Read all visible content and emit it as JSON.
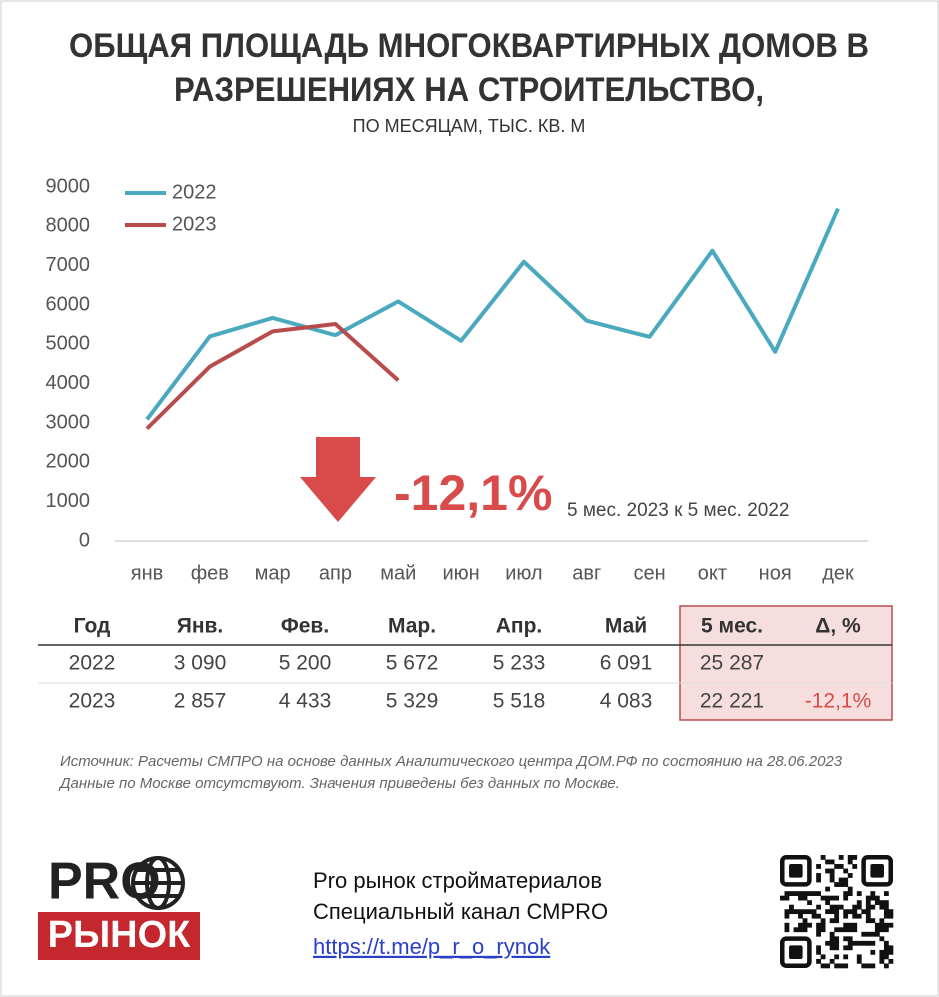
{
  "chart_data": {
    "type": "line",
    "title": [
      "ОБЩАЯ ПЛОЩАДЬ МНОГОКВАРТИРНЫХ ДОМОВ В",
      "РАЗРЕШЕНИЯХ НА СТРОИТЕЛЬСТВО,"
    ],
    "subtitle": "ПО МЕСЯЦАМ, ТЫС. КВ. М",
    "categories": [
      "янв",
      "фев",
      "мар",
      "апр",
      "май",
      "июн",
      "июл",
      "авг",
      "сен",
      "окт",
      "ноя",
      "дек"
    ],
    "series": [
      {
        "name": "2022",
        "color": "#4aa8bf",
        "values": [
          3090,
          5200,
          5672,
          5233,
          6091,
          5090,
          7100,
          5600,
          5190,
          7380,
          4810,
          8450
        ]
      },
      {
        "name": "2023",
        "color": "#b84c4c",
        "values": [
          2857,
          4433,
          5329,
          5518,
          4083,
          null,
          null,
          null,
          null,
          null,
          null,
          null
        ]
      }
    ],
    "ylim": [
      0,
      9000
    ],
    "yticks": [
      0,
      1000,
      2000,
      3000,
      4000,
      5000,
      6000,
      7000,
      8000,
      9000
    ],
    "legend": "upper-left",
    "annotation": {
      "value": "-12,1%",
      "note": "5 мес. 2023 к 5 мес. 2022"
    }
  },
  "table": {
    "header": [
      "Год",
      "Янв.",
      "Фев.",
      "Мар.",
      "Апр.",
      "Май",
      "5 мес.",
      "Δ, %"
    ],
    "rows": [
      [
        "2022",
        "3 090",
        "5 200",
        "5 672",
        "5 233",
        "6 091",
        "25 287"
      ],
      [
        "2023",
        "2 857",
        "4 433",
        "5 329",
        "5 518",
        "4 083",
        "22 221",
        "-12,1%"
      ]
    ]
  },
  "source": [
    "Источник: Расчеты СМПРО на основе данных Аналитического центра ДОМ.РФ по состоянию на 28.06.2023",
    "Данные по Москве отсутствуют. Значения приведены без данных по Москве."
  ],
  "footer": {
    "logo_top": "PRO",
    "logo_bottom": "РЫНОК",
    "channel_name": "Pro рынок стройматериалов",
    "channel_desc": "Специальный канал СМPRO",
    "link": "https://t.me/p_r_o_rynok"
  }
}
